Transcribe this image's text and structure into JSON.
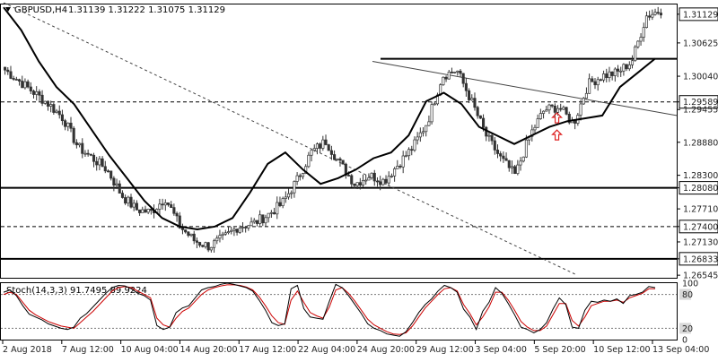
{
  "header": {
    "symbol": "GBPUSD,H4",
    "ohlc": "1.31139 1.31222 1.31075 1.31129"
  },
  "colors": {
    "background": "#ffffff",
    "candle": "#333333",
    "ma_line": "#000000",
    "level_line": "#000000",
    "trend_line": "#444444",
    "stoch_main": "#000000",
    "stoch_signal": "#cc0000",
    "arrow": "#dd2222",
    "axis_text": "#222222"
  },
  "chart_data": [
    {
      "type": "candlestick",
      "title": "GBPUSD,H4",
      "ylim": [
        1.265,
        1.313
      ],
      "y_ticks": [
        "1.31129",
        "1.30625",
        "1.30040",
        "1.29589",
        "1.29455",
        "1.28880",
        "1.28300",
        "1.28080",
        "1.27710",
        "1.27400",
        "1.27130",
        "1.26833",
        "1.26545"
      ],
      "x_ticks": [
        "2 Aug 2018",
        "7 Aug 12:00",
        "10 Aug 04:00",
        "14 Aug 20:00",
        "17 Aug 12:00",
        "22 Aug 04:00",
        "24 Aug 20:00",
        "29 Aug 12:00",
        "3 Sep 04:00",
        "5 Sep 20:00",
        "10 Sep 12:00",
        "13 Sep 04:00"
      ],
      "close_anchors": [
        1.3015,
        1.2995,
        1.2975,
        1.2955,
        1.293,
        1.288,
        1.286,
        1.284,
        1.2795,
        1.277,
        1.2765,
        1.279,
        1.274,
        1.2715,
        1.2705,
        1.272,
        1.274,
        1.2745,
        1.276,
        1.278,
        1.282,
        1.287,
        1.289,
        1.285,
        1.2815,
        1.283,
        1.282,
        1.285,
        1.288,
        1.2925,
        1.3005,
        1.3015,
        1.296,
        1.29,
        1.286,
        1.283,
        1.29,
        1.2945,
        1.295,
        1.292,
        1.299,
        1.3005,
        1.301,
        1.303,
        1.311,
        1.312
      ],
      "moving_average": [
        1.3125,
        1.3085,
        1.303,
        1.2985,
        1.2955,
        1.291,
        1.2865,
        1.2825,
        1.2785,
        1.2755,
        1.274,
        1.2735,
        1.274,
        1.2755,
        1.28,
        1.285,
        1.287,
        1.284,
        1.2815,
        1.2825,
        1.284,
        1.286,
        1.287,
        1.29,
        1.296,
        1.2975,
        1.2955,
        1.2915,
        1.29,
        1.2885,
        1.29,
        1.2915,
        1.2925,
        1.293,
        1.2935,
        1.2985,
        1.301,
        1.3035
      ],
      "horizontal_levels": [
        {
          "value": 1.30345,
          "style": "solid"
        },
        {
          "value": 1.29589,
          "style": "dashed",
          "label": "1.29589"
        },
        {
          "value": 1.2808,
          "style": "solid",
          "label": "1.28080"
        },
        {
          "value": 1.274,
          "style": "dashed",
          "label": "1.27400"
        },
        {
          "value": 1.26833,
          "style": "solid",
          "label": "1.26833"
        }
      ],
      "trend_lines": [
        {
          "style": "dotted",
          "from": [
            1.3133,
            0.0
          ],
          "to": [
            1.2655,
            0.87
          ]
        },
        {
          "style": "solid",
          "from": [
            1.303,
            0.56
          ],
          "to": [
            1.2935,
            1.0
          ]
        }
      ],
      "current_price": "1.31129",
      "annotations": [
        {
          "shape": "up-arrow",
          "x_frac": 0.84,
          "y": 1.293
        },
        {
          "shape": "up-arrow",
          "x_frac": 0.84,
          "y": 1.29
        }
      ]
    },
    {
      "type": "line",
      "title": "Stoch(14,3,3) 91.7495 89.9224",
      "ylim": [
        0,
        100
      ],
      "y_ticks": [
        "100",
        "80",
        "20",
        "0"
      ],
      "levels": [
        80,
        20
      ],
      "series": [
        {
          "key": "main",
          "values": [
            84,
            88,
            78,
            60,
            45,
            40,
            35,
            28,
            24,
            20,
            18,
            22,
            38,
            46,
            58,
            70,
            82,
            92,
            96,
            95,
            90,
            82,
            78,
            70,
            25,
            18,
            22,
            48,
            56,
            60,
            74,
            88,
            92,
            94,
            98,
            100,
            98,
            95,
            92,
            86,
            70,
            52,
            30,
            25,
            28,
            90,
            96,
            55,
            40,
            38,
            36,
            68,
            98,
            92,
            78,
            62,
            46,
            28,
            20,
            16,
            10,
            8,
            6,
            14,
            30,
            48,
            62,
            72,
            86,
            96,
            92,
            84,
            54,
            40,
            18,
            50,
            66,
            92,
            82,
            64,
            44,
            22,
            18,
            12,
            18,
            30,
            54,
            74,
            62,
            22,
            20,
            52,
            68,
            66,
            70,
            68,
            72,
            64,
            78,
            80,
            84,
            94,
            92
          ]
        },
        {
          "key": "signal",
          "values": [
            80,
            84,
            80,
            66,
            52,
            44,
            38,
            32,
            28,
            24,
            22,
            20,
            30,
            40,
            50,
            62,
            74,
            86,
            92,
            94,
            92,
            86,
            80,
            74,
            38,
            26,
            22,
            38,
            50,
            56,
            68,
            80,
            88,
            92,
            95,
            97,
            97,
            96,
            93,
            88,
            76,
            60,
            42,
            30,
            27,
            70,
            86,
            66,
            48,
            42,
            38,
            58,
            88,
            92,
            82,
            68,
            52,
            36,
            26,
            20,
            14,
            10,
            9,
            12,
            24,
            40,
            56,
            68,
            80,
            90,
            92,
            86,
            62,
            46,
            26,
            40,
            58,
            84,
            84,
            70,
            52,
            32,
            22,
            16,
            16,
            24,
            44,
            64,
            64,
            34,
            24,
            40,
            60,
            64,
            68,
            68,
            70,
            66,
            74,
            78,
            82,
            90,
            90
          ]
        }
      ]
    }
  ]
}
